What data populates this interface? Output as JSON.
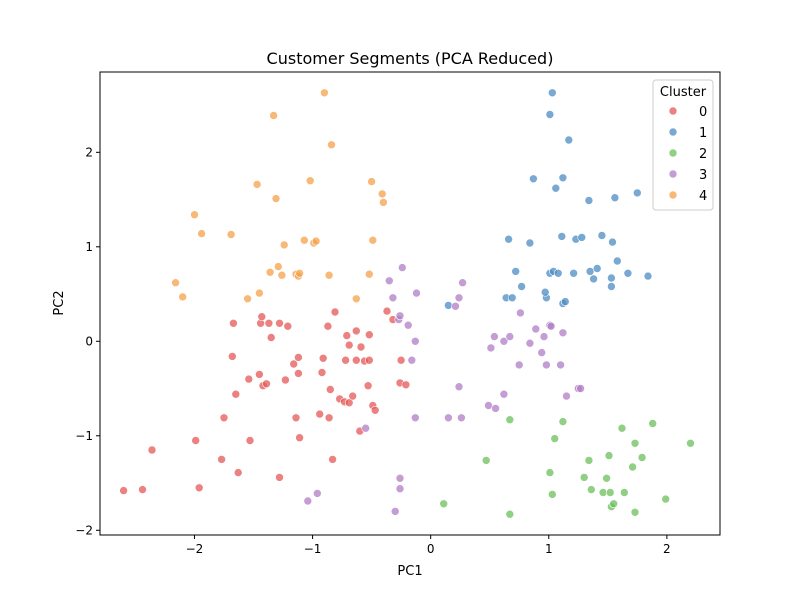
{
  "chart_data": {
    "type": "scatter",
    "title": "Customer Segments (PCA Reduced)",
    "xlabel": "PC1",
    "ylabel": "PC2",
    "xlim": [
      -2.8,
      2.45
    ],
    "ylim": [
      -2.05,
      2.85
    ],
    "xticks": [
      -2,
      -1,
      0,
      1,
      2
    ],
    "yticks": [
      -2,
      -1,
      0,
      1,
      2
    ],
    "xtick_labels": [
      "−2",
      "−1",
      "0",
      "1",
      "2"
    ],
    "ytick_labels": [
      "−2",
      "−1",
      "0",
      "1",
      "2"
    ],
    "grid": false,
    "legend": {
      "title": "Cluster",
      "placement": "top-right"
    },
    "series": [
      {
        "name": "0",
        "color": "#e45756",
        "points": [
          [
            -2.6,
            -1.58
          ],
          [
            -2.44,
            -1.57
          ],
          [
            -2.36,
            -1.15
          ],
          [
            -1.99,
            -1.05
          ],
          [
            -1.96,
            -1.55
          ],
          [
            -1.77,
            -1.25
          ],
          [
            -1.75,
            -0.81
          ],
          [
            -1.68,
            -0.16
          ],
          [
            -1.67,
            0.19
          ],
          [
            -1.65,
            -0.56
          ],
          [
            -1.63,
            -1.39
          ],
          [
            -1.54,
            -0.4
          ],
          [
            -1.53,
            -1.05
          ],
          [
            -1.45,
            -0.35
          ],
          [
            -1.44,
            0.19
          ],
          [
            -1.43,
            0.26
          ],
          [
            -1.42,
            -0.47
          ],
          [
            -1.39,
            -0.45
          ],
          [
            -1.37,
            0.19
          ],
          [
            -1.35,
            0.04
          ],
          [
            -1.28,
            0.19
          ],
          [
            -1.28,
            -1.44
          ],
          [
            -1.23,
            -0.41
          ],
          [
            -1.21,
            0.16
          ],
          [
            -1.16,
            -0.24
          ],
          [
            -1.14,
            -0.81
          ],
          [
            -1.12,
            -0.17
          ],
          [
            -1.12,
            -0.34
          ],
          [
            -1.11,
            -1.02
          ],
          [
            -0.94,
            -0.77
          ],
          [
            -0.92,
            -0.33
          ],
          [
            -0.91,
            -0.18
          ],
          [
            -0.87,
            0.16
          ],
          [
            -0.86,
            -0.81
          ],
          [
            -0.85,
            -0.51
          ],
          [
            -0.83,
            -1.25
          ],
          [
            -0.81,
            0.31
          ],
          [
            -0.77,
            -0.61
          ],
          [
            -0.73,
            -0.64
          ],
          [
            -0.72,
            -0.2
          ],
          [
            -0.71,
            0.06
          ],
          [
            -0.69,
            -0.65
          ],
          [
            -0.69,
            -0.04
          ],
          [
            -0.66,
            -0.58
          ],
          [
            -0.63,
            0.11
          ],
          [
            -0.63,
            -0.2
          ],
          [
            -0.6,
            -0.95
          ],
          [
            -0.59,
            -0.06
          ],
          [
            -0.56,
            -0.21
          ],
          [
            -0.53,
            -0.47
          ],
          [
            -0.52,
            -0.2
          ],
          [
            -0.52,
            0.07
          ],
          [
            -0.49,
            -0.68
          ],
          [
            -0.47,
            -0.73
          ],
          [
            -0.37,
            0.32
          ],
          [
            -0.32,
            0.23
          ],
          [
            -0.26,
            -0.44
          ],
          [
            -0.25,
            -0.2
          ],
          [
            -0.21,
            -0.46
          ]
        ]
      },
      {
        "name": "1",
        "color": "#4c8bc3",
        "points": [
          [
            0.15,
            0.38
          ],
          [
            0.64,
            0.46
          ],
          [
            0.66,
            1.08
          ],
          [
            0.69,
            0.46
          ],
          [
            0.72,
            0.74
          ],
          [
            0.84,
            1.04
          ],
          [
            0.77,
            0.58
          ],
          [
            0.87,
            1.72
          ],
          [
            0.98,
            0.46
          ],
          [
            0.97,
            0.52
          ],
          [
            1.01,
            0.72
          ],
          [
            1.01,
            2.4
          ],
          [
            1.03,
            2.63
          ],
          [
            1.04,
            0.74
          ],
          [
            1.06,
            1.62
          ],
          [
            1.08,
            0.72
          ],
          [
            1.11,
            1.11
          ],
          [
            1.12,
            1.73
          ],
          [
            1.12,
            0.4
          ],
          [
            1.14,
            0.42
          ],
          [
            1.17,
            2.13
          ],
          [
            1.21,
            0.72
          ],
          [
            1.23,
            1.08
          ],
          [
            1.28,
            1.1
          ],
          [
            1.34,
            1.49
          ],
          [
            1.35,
            0.74
          ],
          [
            1.38,
            0.66
          ],
          [
            1.41,
            0.77
          ],
          [
            1.45,
            1.12
          ],
          [
            1.53,
            0.67
          ],
          [
            1.53,
            0.58
          ],
          [
            1.54,
            1.05
          ],
          [
            1.56,
            1.52
          ],
          [
            1.58,
            0.85
          ],
          [
            1.67,
            0.72
          ],
          [
            1.75,
            1.57
          ],
          [
            1.84,
            0.69
          ]
        ]
      },
      {
        "name": "2",
        "color": "#6cbf5c",
        "points": [
          [
            0.11,
            -1.72
          ],
          [
            0.47,
            -1.26
          ],
          [
            0.67,
            -0.83
          ],
          [
            0.67,
            -1.83
          ],
          [
            1.01,
            -1.39
          ],
          [
            1.03,
            -1.62
          ],
          [
            1.05,
            -1.03
          ],
          [
            1.12,
            -0.85
          ],
          [
            1.3,
            -1.44
          ],
          [
            1.34,
            -1.26
          ],
          [
            1.36,
            -1.57
          ],
          [
            1.46,
            -1.6
          ],
          [
            1.49,
            -1.45
          ],
          [
            1.51,
            -1.21
          ],
          [
            1.52,
            -1.6
          ],
          [
            1.53,
            -1.75
          ],
          [
            1.55,
            -1.72
          ],
          [
            1.62,
            -0.92
          ],
          [
            1.64,
            -1.6
          ],
          [
            1.71,
            -1.33
          ],
          [
            1.73,
            -1.08
          ],
          [
            1.73,
            -1.81
          ],
          [
            1.79,
            -1.23
          ],
          [
            1.88,
            -0.87
          ],
          [
            1.99,
            -1.67
          ],
          [
            2.2,
            -1.08
          ]
        ]
      },
      {
        "name": "3",
        "color": "#b07cc6",
        "points": [
          [
            -1.04,
            -1.69
          ],
          [
            -0.96,
            -1.61
          ],
          [
            -0.55,
            -0.92
          ],
          [
            -0.35,
            0.64
          ],
          [
            -0.32,
            0.46
          ],
          [
            -0.3,
            -1.8
          ],
          [
            -0.27,
            0.23
          ],
          [
            -0.26,
            0.27
          ],
          [
            -0.26,
            -1.45
          ],
          [
            -0.26,
            -1.56
          ],
          [
            -0.24,
            0.78
          ],
          [
            -0.19,
            0.17
          ],
          [
            -0.12,
            0.51
          ],
          [
            -0.13,
            -0.0
          ],
          [
            -0.16,
            -0.2
          ],
          [
            -0.13,
            -0.81
          ],
          [
            0.15,
            -0.81
          ],
          [
            0.21,
            0.37
          ],
          [
            0.24,
            0.46
          ],
          [
            0.24,
            -0.48
          ],
          [
            0.27,
            0.62
          ],
          [
            0.26,
            -0.81
          ],
          [
            0.49,
            -0.68
          ],
          [
            0.51,
            -0.07
          ],
          [
            0.54,
            0.05
          ],
          [
            0.55,
            -0.71
          ],
          [
            0.62,
            0.0
          ],
          [
            0.62,
            -0.56
          ],
          [
            0.67,
            0.05
          ],
          [
            0.75,
            -0.25
          ],
          [
            0.76,
            0.3
          ],
          [
            0.84,
            -0.02
          ],
          [
            0.89,
            0.13
          ],
          [
            0.94,
            -0.12
          ],
          [
            0.96,
            0.05
          ],
          [
            0.98,
            -0.25
          ],
          [
            1.01,
            0.17
          ],
          [
            1.02,
            0.16
          ],
          [
            1.1,
            -0.25
          ],
          [
            1.12,
            0.09
          ],
          [
            1.15,
            -0.58
          ],
          [
            1.25,
            -0.5
          ],
          [
            1.27,
            -0.5
          ]
        ]
      },
      {
        "name": "4",
        "color": "#f5a04a",
        "points": [
          [
            -2.16,
            0.62
          ],
          [
            -2.1,
            0.47
          ],
          [
            -2.0,
            1.34
          ],
          [
            -1.94,
            1.14
          ],
          [
            -1.69,
            1.13
          ],
          [
            -1.55,
            0.45
          ],
          [
            -1.47,
            1.66
          ],
          [
            -1.45,
            0.51
          ],
          [
            -1.36,
            0.73
          ],
          [
            -1.33,
            2.39
          ],
          [
            -1.31,
            1.51
          ],
          [
            -1.29,
            0.79
          ],
          [
            -1.26,
            0.7
          ],
          [
            -1.24,
            1.02
          ],
          [
            -1.14,
            0.71
          ],
          [
            -1.12,
            0.69
          ],
          [
            -1.11,
            0.72
          ],
          [
            -1.07,
            1.07
          ],
          [
            -1.02,
            1.7
          ],
          [
            -0.99,
            1.04
          ],
          [
            -0.97,
            1.06
          ],
          [
            -0.9,
            2.63
          ],
          [
            -0.84,
            2.08
          ],
          [
            -0.86,
            0.7
          ],
          [
            -0.63,
            0.45
          ],
          [
            -0.5,
            1.69
          ],
          [
            -0.52,
            0.71
          ],
          [
            -0.49,
            1.07
          ],
          [
            -0.41,
            1.56
          ],
          [
            -0.4,
            1.47
          ]
        ]
      }
    ]
  }
}
